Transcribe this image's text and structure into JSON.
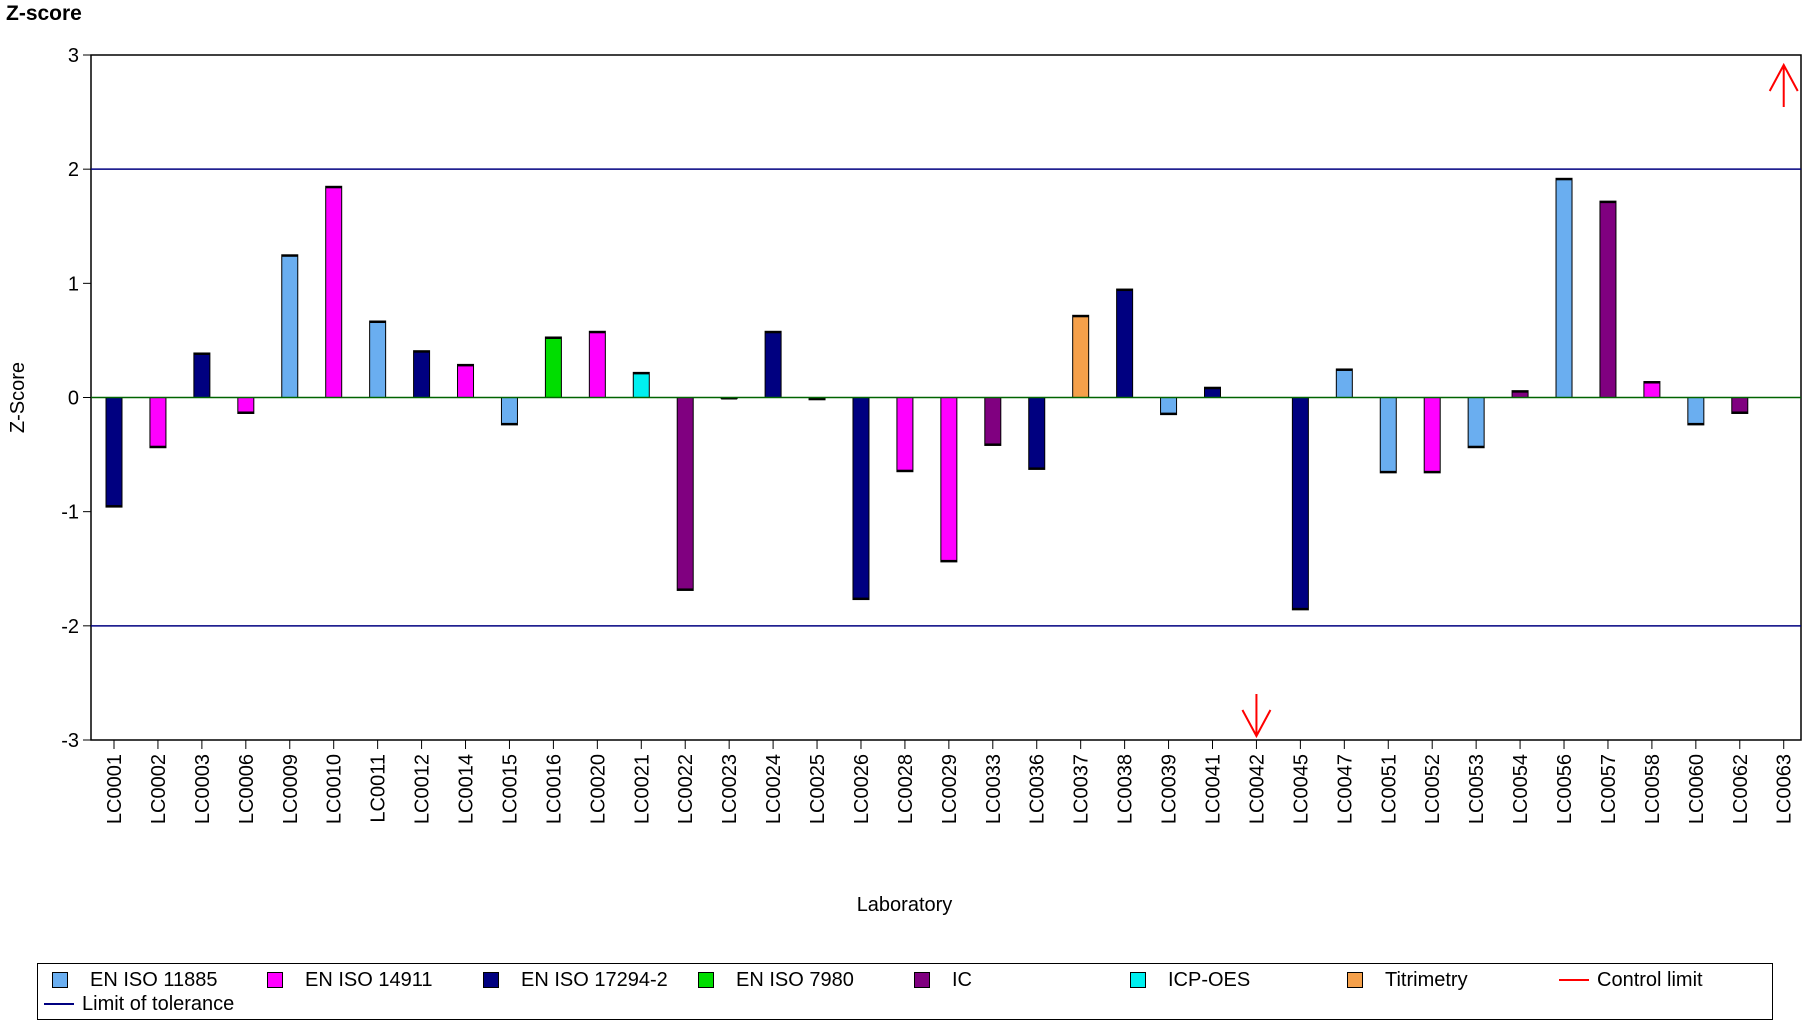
{
  "chart_data": {
    "type": "bar",
    "title": "Z-score",
    "xlabel": "Laboratory",
    "ylabel": "Z-Score",
    "ylim": [
      -3,
      3
    ],
    "yticks": [
      "3",
      "2",
      "1",
      "0",
      "-1",
      "-2",
      "-3"
    ],
    "categories": [
      "LC0001",
      "LC0002",
      "LC0003",
      "LC0006",
      "LC0009",
      "LC0010",
      "LC0011",
      "LC0012",
      "LC0014",
      "LC0015",
      "LC0016",
      "LC0020",
      "LC0021",
      "LC0022",
      "LC0023",
      "LC0024",
      "LC0025",
      "LC0026",
      "LC0028",
      "LC0029",
      "LC0033",
      "LC0036",
      "LC0037",
      "LC0038",
      "LC0039",
      "LC0041",
      "LC0042",
      "LC0045",
      "LC0047",
      "LC0051",
      "LC0052",
      "LC0053",
      "LC0054",
      "LC0056",
      "LC0057",
      "LC0058",
      "LC0060",
      "LC0062",
      "LC0063"
    ],
    "values": [
      -0.96,
      -0.44,
      0.39,
      -0.14,
      1.25,
      1.85,
      0.67,
      0.41,
      0.29,
      -0.24,
      0.53,
      0.58,
      0.22,
      -1.69,
      0.0,
      0.58,
      -0.02,
      -1.77,
      -0.65,
      -1.44,
      -0.42,
      -0.63,
      0.72,
      0.95,
      -0.15,
      0.09,
      null,
      -1.86,
      0.25,
      -0.66,
      -0.66,
      -0.44,
      0.06,
      1.92,
      1.72,
      0.14,
      -0.24,
      -0.14,
      null
    ],
    "method": [
      "EN ISO 17294-2",
      "EN ISO 14911",
      "EN ISO 17294-2",
      "EN ISO 14911",
      "EN ISO 11885",
      "EN ISO 14911",
      "EN ISO 11885",
      "EN ISO 17294-2",
      "EN ISO 14911",
      "EN ISO 11885",
      "EN ISO 7980",
      "EN ISO 14911",
      "ICP-OES",
      "IC",
      "EN ISO 11885",
      "EN ISO 17294-2",
      "EN ISO 17294-2",
      "EN ISO 17294-2",
      "EN ISO 14911",
      "EN ISO 14911",
      "IC",
      "EN ISO 17294-2",
      "Titrimetry",
      "EN ISO 17294-2",
      "EN ISO 11885",
      "EN ISO 17294-2",
      "",
      "EN ISO 17294-2",
      "EN ISO 11885",
      "EN ISO 11885",
      "EN ISO 14911",
      "EN ISO 11885",
      "IC",
      "EN ISO 11885",
      "IC",
      "EN ISO 14911",
      "EN ISO 11885",
      "IC",
      ""
    ],
    "off_scale": [
      {
        "category": "LC0042",
        "direction": "down"
      },
      {
        "category": "LC0063",
        "direction": "up"
      }
    ],
    "limit_of_tolerance": [
      2,
      -2
    ],
    "legend": {
      "placement": "bottom",
      "methods": [
        {
          "name": "EN ISO 11885",
          "color": "#6aaef0"
        },
        {
          "name": "EN ISO 14911",
          "color": "#ff00ff"
        },
        {
          "name": "EN ISO 17294-2",
          "color": "#000080"
        },
        {
          "name": "EN ISO 7980",
          "color": "#00dd00"
        },
        {
          "name": "IC",
          "color": "#800080"
        },
        {
          "name": "ICP-OES",
          "color": "#00f0f0"
        },
        {
          "name": "Titrimetry",
          "color": "#f5a04a"
        }
      ],
      "lines": [
        {
          "name": "Control limit",
          "color": "#ff0000"
        },
        {
          "name": "Limit of tolerance",
          "color": "#000080"
        }
      ]
    },
    "colors": {
      "zero_line": "#006400",
      "tolerance_line": "#000080",
      "arrow": "#ff0000"
    },
    "grid": false
  }
}
